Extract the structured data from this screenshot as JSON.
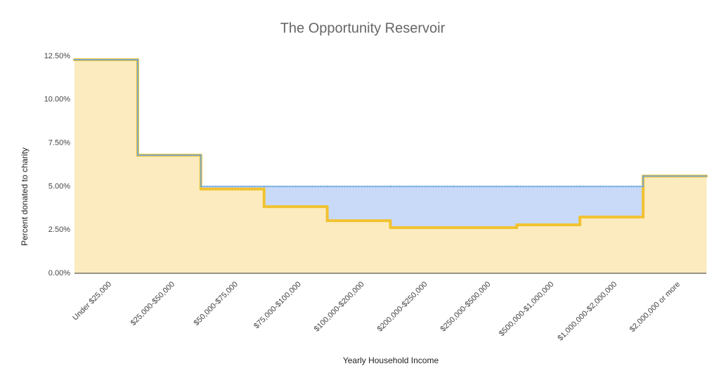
{
  "chart_data": {
    "type": "stepped-area",
    "title": "The Opportunity Reservoir",
    "x_label": "Yearly Household Income",
    "y_label": "Percent donated to charity",
    "categories": [
      "Under $25,000",
      "$25,000-$50,000",
      "$50,000-$75,000",
      "$75,000-$100,000",
      "$100,000-$200,000",
      "$200,000-$250,000",
      "$250,000-$500,000",
      "$500,000-$1,000,000",
      "$1,000,000-$2,000,000",
      "$2,000,000 or more"
    ],
    "series": [
      {
        "color": "#6fa8dc",
        "fill": "#c9daf8",
        "values": [
          12.3,
          6.8,
          5,
          5,
          5,
          5,
          5,
          5,
          5,
          5.6
        ]
      },
      {
        "color": "#f1c232",
        "fill": "#fbebbf",
        "values": [
          12.3,
          6.8,
          4.85,
          3.84,
          3.03,
          2.63,
          2.63,
          2.79,
          3.24,
          5.6
        ]
      }
    ],
    "ylim": [
      0,
      12.5
    ],
    "yticks": [
      {
        "value": 0,
        "label": "0.00%"
      },
      {
        "value": 2.5,
        "label": "2.50%"
      },
      {
        "value": 5,
        "label": "5.00%"
      },
      {
        "value": 7.5,
        "label": "7.50%"
      },
      {
        "value": 10,
        "label": "10.00%"
      },
      {
        "value": 12.5,
        "label": "12.50%"
      }
    ],
    "grid": false
  }
}
